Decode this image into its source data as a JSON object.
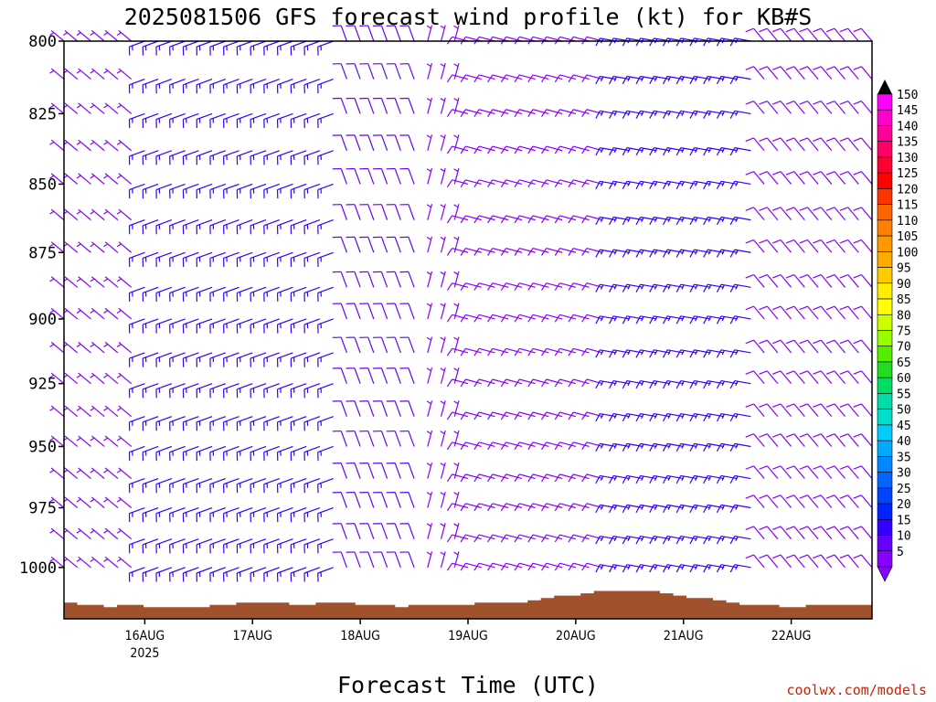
{
  "title": "2025081506 GFS forecast wind profile (kt) for KB#S",
  "xlabel": "Forecast Time (UTC)",
  "credit": "coolwx.com/models",
  "colors": {
    "terrain": "#a0522d",
    "credit": "#cc2200"
  },
  "chart_data": {
    "type": "wind_barb_time_height",
    "title": "2025081506 GFS forecast wind profile (kt) for KB#S",
    "xlabel": "Forecast Time (UTC)",
    "ylabel": "",
    "x_ticks": [
      {
        "label": "16AUG",
        "sublabel": "2025",
        "time": "2025-08-16 00Z"
      },
      {
        "label": "17AUG",
        "sublabel": "",
        "time": "2025-08-17 00Z"
      },
      {
        "label": "18AUG",
        "sublabel": "",
        "time": "2025-08-18 00Z"
      },
      {
        "label": "19AUG",
        "sublabel": "",
        "time": "2025-08-19 00Z"
      },
      {
        "label": "20AUG",
        "sublabel": "",
        "time": "2025-08-20 00Z"
      },
      {
        "label": "21AUG",
        "sublabel": "",
        "time": "2025-08-21 00Z"
      },
      {
        "label": "22AUG",
        "sublabel": "",
        "time": "2025-08-22 00Z"
      }
    ],
    "x_range": [
      "2025-08-15 06Z",
      "2025-08-22 18Z"
    ],
    "time_step_hours": 3,
    "y_ticks": [
      800,
      825,
      850,
      875,
      900,
      925,
      950,
      975,
      1000
    ],
    "y_range_hpa": [
      800,
      1022
    ],
    "y_scale": "log-pressure",
    "levels_hpa": [
      800,
      813,
      825,
      838,
      850,
      863,
      875,
      888,
      900,
      913,
      925,
      938,
      950,
      963,
      975,
      988,
      1000,
      1013
    ],
    "colorbar": {
      "label_units": "kt",
      "ticks": [
        150,
        145,
        140,
        135,
        130,
        125,
        120,
        115,
        110,
        105,
        100,
        95,
        90,
        85,
        80,
        75,
        70,
        65,
        60,
        55,
        50,
        45,
        40,
        35,
        30,
        25,
        20,
        15,
        10,
        5
      ],
      "colors": [
        "#ff00ff",
        "#ff00cc",
        "#ff0099",
        "#ff0066",
        "#ff0033",
        "#ff0000",
        "#ff3300",
        "#ff6600",
        "#ff8000",
        "#ff9900",
        "#ffaa00",
        "#ffcc00",
        "#ffee00",
        "#ffff00",
        "#ccff00",
        "#99ff00",
        "#55ee00",
        "#22dd22",
        "#00dd66",
        "#00ddaa",
        "#00ddcc",
        "#00ccff",
        "#00aaff",
        "#0088ff",
        "#0066ff",
        "#0044ff",
        "#0022ff",
        "#3300ff",
        "#6600ff",
        "#8800ff"
      ]
    },
    "wind_regimes": [
      {
        "period": "15AUG 06Z - 15AUG 21Z",
        "direction_deg": 310,
        "speed_kt": 7
      },
      {
        "period": "16AUG 00Z - 17AUG 18Z",
        "direction_deg": 250,
        "speed_kt": 17
      },
      {
        "period": "17AUG 21Z - 18AUG 12Z",
        "direction_deg": 340,
        "speed_kt": 12
      },
      {
        "period": "18AUG 15Z - 18AUG 21Z",
        "direction_deg": 15,
        "speed_kt": 6
      },
      {
        "period": "19AUG 00Z - 20AUG 06Z",
        "direction_deg": 285,
        "speed_kt": 9
      },
      {
        "period": "20AUG 09Z - 21AUG 15Z",
        "direction_deg": 280,
        "speed_kt": 16
      },
      {
        "period": "21AUG 18Z - 22AUG 18Z",
        "direction_deg": 320,
        "speed_kt": 8
      }
    ],
    "terrain_surface_pressure_hpa": [
      1015,
      1016,
      1016,
      1017,
      1016,
      1016,
      1017,
      1017,
      1017,
      1017,
      1017,
      1016,
      1016,
      1015,
      1015,
      1015,
      1015,
      1016,
      1016,
      1015,
      1015,
      1015,
      1016,
      1016,
      1016,
      1017,
      1016,
      1016,
      1016,
      1016,
      1016,
      1015,
      1015,
      1015,
      1015,
      1014,
      1013,
      1012,
      1012,
      1011,
      1010,
      1010,
      1010,
      1010,
      1010,
      1011,
      1012,
      1013,
      1013,
      1014,
      1015,
      1016,
      1016,
      1016,
      1017,
      1017,
      1016,
      1016,
      1016,
      1016,
      1016
    ]
  }
}
